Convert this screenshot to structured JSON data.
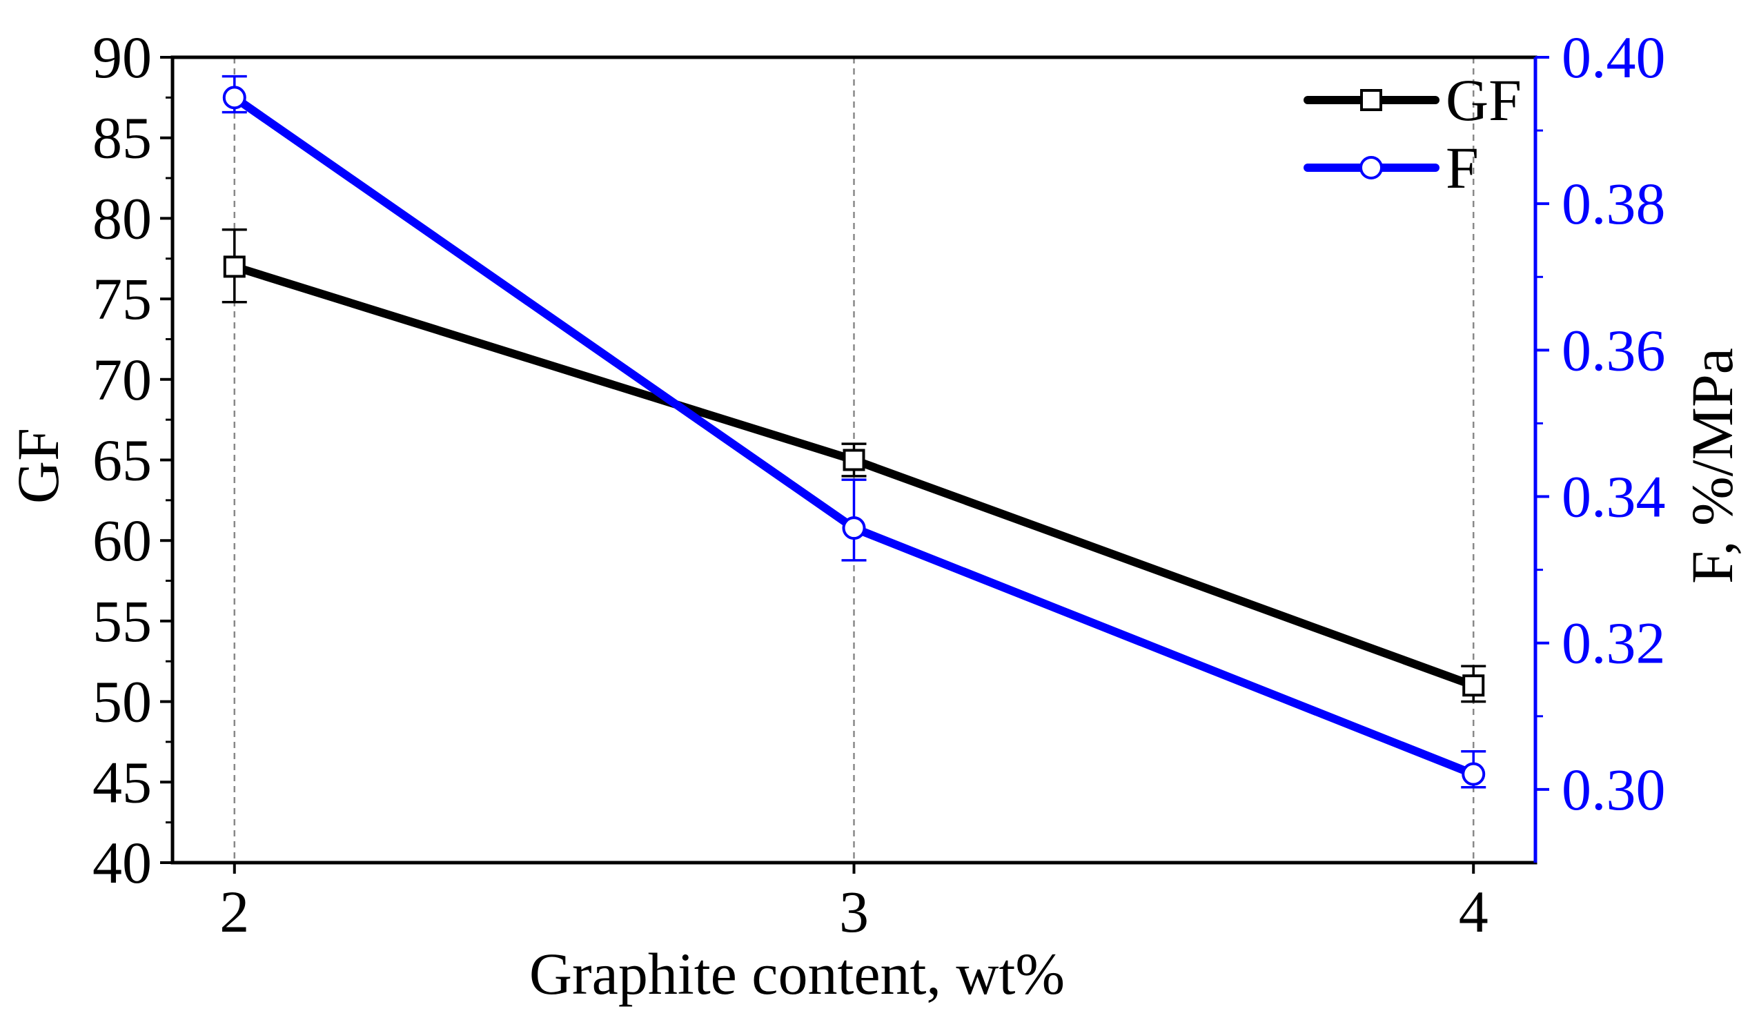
{
  "chart_data": {
    "type": "line",
    "title": "",
    "xlabel": "Graphite content, wt%",
    "x": [
      2,
      3,
      4
    ],
    "x_ticks": [
      "2",
      "3",
      "4"
    ],
    "xlim": [
      1.9,
      4.1
    ],
    "left_axis": {
      "label": "GF",
      "ylim": [
        40,
        90
      ],
      "ticks": [
        "40",
        "45",
        "50",
        "55",
        "60",
        "65",
        "70",
        "75",
        "80",
        "85",
        "90"
      ]
    },
    "right_axis": {
      "label": "F, %/MPa",
      "ylim": [
        0.29,
        0.4
      ],
      "ticks": [
        "0.30",
        "0.32",
        "0.34",
        "0.36",
        "0.38",
        "0.40"
      ],
      "color": "#0000ff"
    },
    "series": [
      {
        "name": "GF",
        "axis": "left",
        "color": "#000000",
        "marker": "square",
        "values": [
          77,
          65,
          51
        ],
        "error_low": [
          74.8,
          64.0,
          50.0
        ],
        "error_high": [
          79.3,
          66.0,
          52.2
        ]
      },
      {
        "name": "F",
        "axis": "right",
        "color": "#0000ff",
        "marker": "circle",
        "values": [
          0.3945,
          0.3357,
          0.3021
        ],
        "error_low": [
          0.3925,
          0.3313,
          0.3003
        ],
        "error_high": [
          0.3974,
          0.3423,
          0.3052
        ]
      }
    ],
    "grid": "vertical-dashed-at-x-ticks",
    "legend": {
      "position": "top-right",
      "entries": [
        "GF",
        "F"
      ]
    }
  }
}
